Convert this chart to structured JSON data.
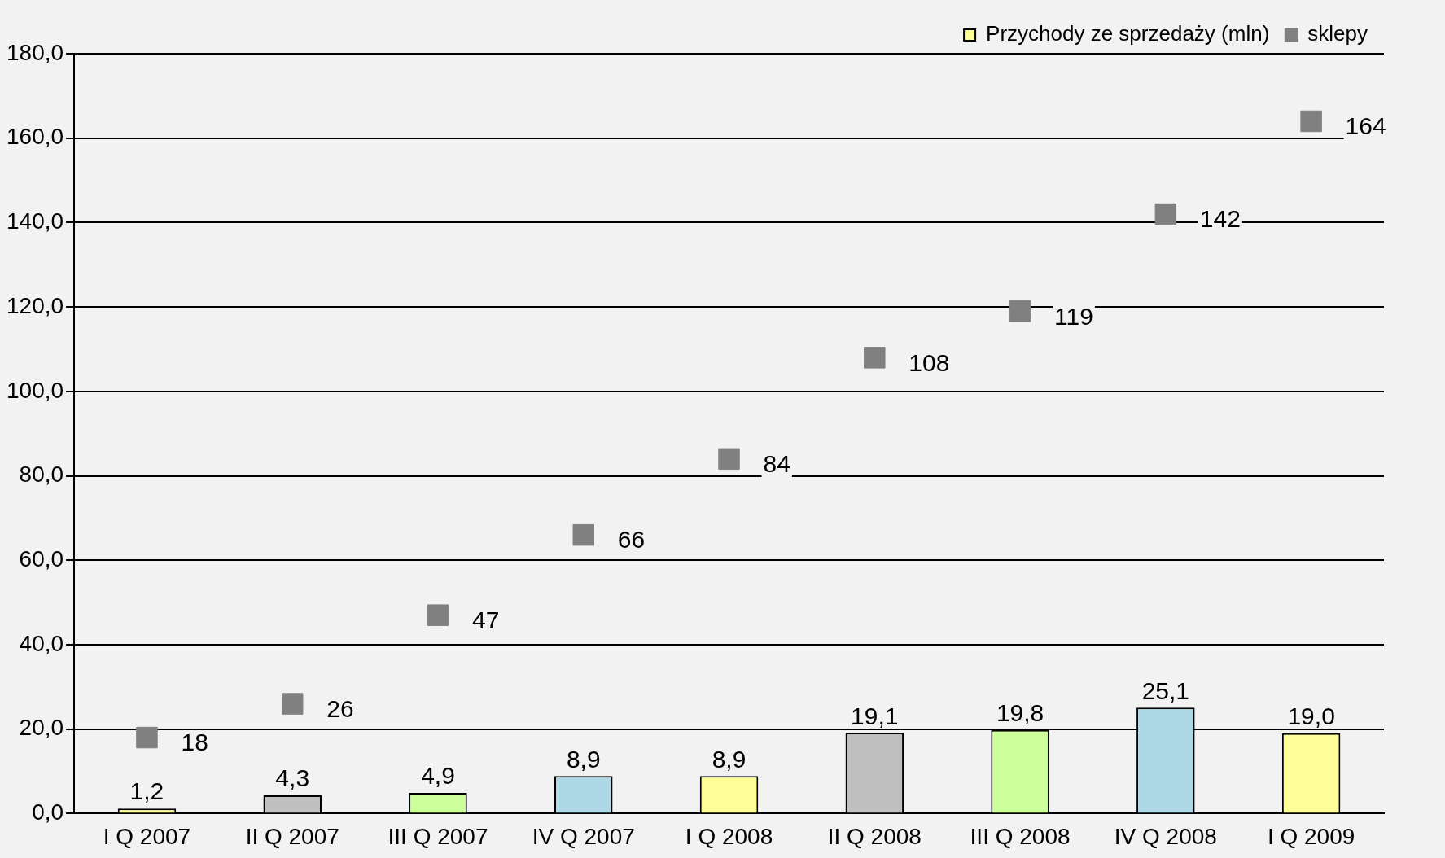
{
  "chart_data": {
    "type": "bar",
    "categories": [
      "I Q 2007",
      "II Q 2007",
      "III Q 2007",
      "IV Q 2007",
      "I Q 2008",
      "II Q 2008",
      "III Q 2008",
      "IV Q 2008",
      "I Q 2009"
    ],
    "series": [
      {
        "name": "Przychody ze sprzedaży (mln)",
        "colors": [
          "#ffff99",
          "#c0c0c0",
          "#ccff99",
          "#add8e6",
          "#ffff99",
          "#c0c0c0",
          "#ccff99",
          "#add8e6",
          "#ffff99"
        ],
        "values": [
          1.2,
          4.3,
          4.9,
          8.9,
          8.9,
          19.1,
          19.8,
          25.1,
          19.0
        ],
        "value_labels": [
          "1,2",
          "4,3",
          "4,9",
          "8,9",
          "8,9",
          "19,1",
          "19,8",
          "25,1",
          "19,0"
        ]
      },
      {
        "name": "sklepy",
        "type": "scatter",
        "color": "#808080",
        "marker": "square",
        "values": [
          18,
          26,
          47,
          66,
          84,
          108,
          119,
          142,
          164
        ],
        "value_labels": [
          "18",
          "26",
          "47",
          "66",
          "84",
          "108",
          "119",
          "142",
          "164"
        ]
      }
    ],
    "ylim": [
      0,
      180
    ],
    "yticks": [
      {
        "value": 0,
        "label": "0,0"
      },
      {
        "value": 20,
        "label": "20,0"
      },
      {
        "value": 40,
        "label": "40,0"
      },
      {
        "value": 60,
        "label": "60,0"
      },
      {
        "value": 80,
        "label": "80,0"
      },
      {
        "value": 100,
        "label": "100,0"
      },
      {
        "value": 120,
        "label": "120,0"
      },
      {
        "value": 140,
        "label": "140,0"
      },
      {
        "value": 160,
        "label": "160,0"
      },
      {
        "value": 180,
        "label": "180,0"
      }
    ],
    "grid": "y",
    "legend": "top right"
  }
}
